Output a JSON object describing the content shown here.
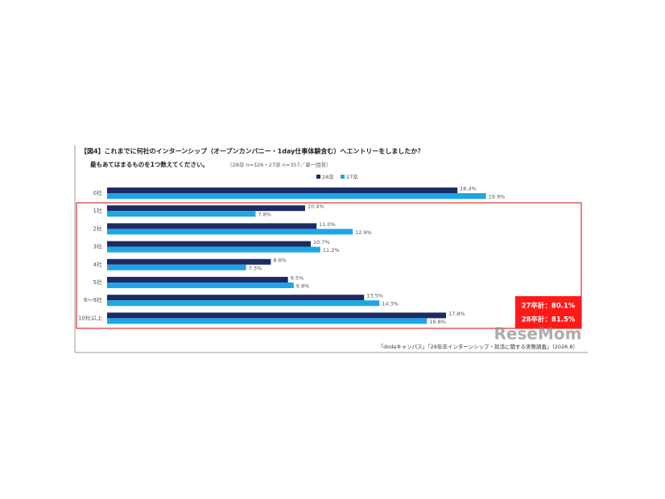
{
  "chart_data": {
    "type": "hbar",
    "title": "【図4】これまでに何社のインターンシップ（オープンカンパニー・1day仕事体験含む）へエントリーをしましたか？",
    "subtitle": "最もあてはまるものを1つ数えてください。",
    "note": "（28卒 n=326・27卒 n=357／単一回答）",
    "categories": [
      "0社",
      "1社",
      "2社",
      "3社",
      "4社",
      "5社",
      "6〜9社",
      "10社以上"
    ],
    "series": [
      {
        "name": "28卒",
        "color": "#1c2b63",
        "values": [
          18.4,
          10.4,
          11.0,
          10.7,
          8.6,
          9.5,
          13.5,
          17.8
        ],
        "value_labels": [
          "18.4%",
          "10.4%",
          "11.0%",
          "10.7%",
          "8.6%",
          "9.5%",
          "13.5%",
          "17.8%"
        ]
      },
      {
        "name": "27卒",
        "color": "#1da6e6",
        "values": [
          19.9,
          7.8,
          12.9,
          11.2,
          7.3,
          9.8,
          14.3,
          16.8
        ],
        "value_labels": [
          "19.9%",
          "7.8%",
          "12.9%",
          "11.2%",
          "7.3%",
          "9.8%",
          "14.3%",
          "16.8%"
        ]
      }
    ],
    "annotations": [
      "27卒計：80.1%",
      "28卒計：81.5%"
    ],
    "source": "「dodaキャンパス」「28年卒インターンシップ・就活に関する実態調査」（2026.8）",
    "watermark": "ReseMom"
  }
}
